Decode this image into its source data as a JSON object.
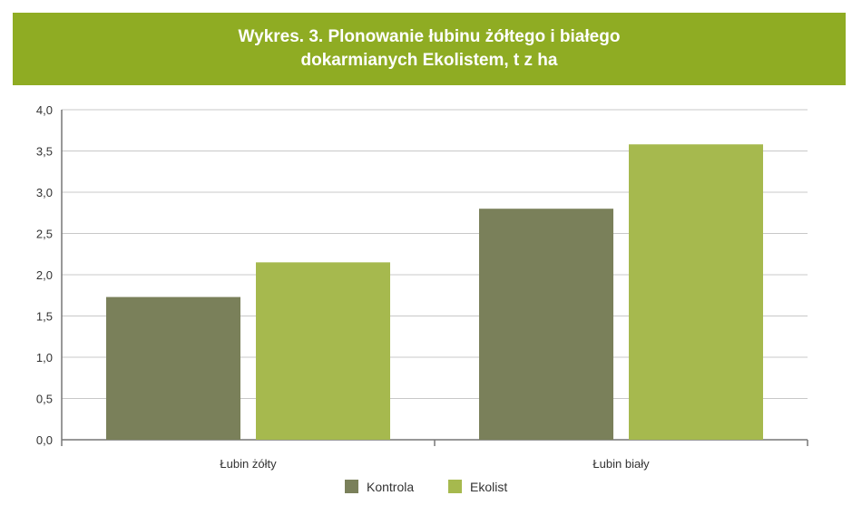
{
  "colors": {
    "title_bg": "#8fac23",
    "grid": "#c8c8c8",
    "axis": "#777777"
  },
  "title": {
    "line1": "Wykres.  3. Plonowanie łubinu żółtego i białego",
    "line2": "dokarmianych Ekolistem, t z ha"
  },
  "chart_data": {
    "type": "bar",
    "title": "Wykres.  3. Plonowanie łubinu żółtego i białego dokarmianych Ekolistem, t z ha",
    "categories": [
      "Łubin żółty",
      "Łubin biały"
    ],
    "series": [
      {
        "name": "Kontrola",
        "values": [
          1.73,
          2.8
        ],
        "color": "#7a805a"
      },
      {
        "name": "Ekolist",
        "values": [
          2.15,
          3.58
        ],
        "color": "#a6b94e"
      }
    ],
    "ylim": [
      0,
      4.0
    ],
    "yticks": [
      "0,0",
      "0,5",
      "1,0",
      "1,5",
      "2,0",
      "2,5",
      "3,0",
      "3,5",
      "4,0"
    ],
    "grid": true,
    "legend": "bottom-center"
  }
}
